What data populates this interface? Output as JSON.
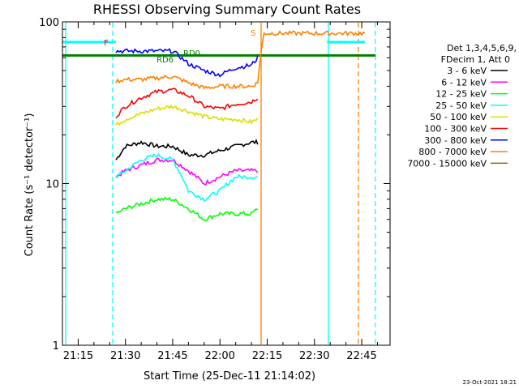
{
  "chart_data": {
    "type": "line",
    "title": "RHESSI Observing Summary Count Rates",
    "xlabel": "Start Time (25-Dec-11 21:14:02)",
    "ylabel": "Count Rate (s⁻¹ detector⁻¹)",
    "yscale": "log",
    "ylim": [
      1,
      100
    ],
    "xlim": [
      "21:10",
      "22:54"
    ],
    "y_ticks": [
      "1",
      "10",
      "100"
    ],
    "x_ticks": [
      "21:15",
      "21:30",
      "21:45",
      "22:00",
      "22:15",
      "22:30",
      "22:45"
    ],
    "grid": false,
    "legend_position": "right",
    "legend_header": [
      "Det 1,3,4,5,6,9,",
      "FDecim 1, Att 0"
    ],
    "series": [
      {
        "name": "3 - 6 keV",
        "color": "#000000",
        "x": [
          "21:27",
          "21:30",
          "21:35",
          "21:40",
          "21:45",
          "21:50",
          "21:55",
          "22:00",
          "22:05",
          "22:10",
          "22:12"
        ],
        "values": [
          14,
          17,
          18,
          17,
          17,
          15,
          15,
          16,
          17,
          18,
          18
        ]
      },
      {
        "name": "6 - 12 keV",
        "color": "#ff00ff",
        "x": [
          "21:27",
          "21:30",
          "21:35",
          "21:40",
          "21:45",
          "21:50",
          "21:55",
          "22:00",
          "22:05",
          "22:10",
          "22:12"
        ],
        "values": [
          11,
          12,
          13,
          14,
          14,
          12,
          10,
          11,
          12,
          12,
          12
        ]
      },
      {
        "name": "12 - 25 keV",
        "color": "#00ff00",
        "x": [
          "21:27",
          "21:30",
          "21:35",
          "21:40",
          "21:45",
          "21:50",
          "21:55",
          "22:00",
          "22:05",
          "22:10",
          "22:12"
        ],
        "values": [
          6.5,
          7,
          7.5,
          8,
          8,
          7,
          6,
          6.5,
          6.5,
          6.5,
          7
        ]
      },
      {
        "name": "25 - 50 keV",
        "color": "#00ffff",
        "x": [
          "21:27",
          "21:30",
          "21:35",
          "21:40",
          "21:45",
          "21:50",
          "21:55",
          "22:00",
          "22:05",
          "22:10",
          "22:12"
        ],
        "values": [
          11,
          12,
          14,
          15,
          14,
          9,
          8,
          9,
          11,
          11,
          11
        ]
      },
      {
        "name": "50 - 100 keV",
        "color": "#dddd00",
        "x": [
          "21:27",
          "21:30",
          "21:35",
          "21:40",
          "21:45",
          "21:50",
          "21:55",
          "22:00",
          "22:05",
          "22:10",
          "22:12"
        ],
        "values": [
          23,
          25,
          27,
          29,
          30,
          28,
          26,
          25,
          25,
          24,
          25
        ]
      },
      {
        "name": "100 - 300 keV",
        "color": "#ff0000",
        "x": [
          "21:27",
          "21:30",
          "21:35",
          "21:40",
          "21:45",
          "21:50",
          "21:55",
          "22:00",
          "22:05",
          "22:10",
          "22:12"
        ],
        "values": [
          26,
          30,
          34,
          37,
          38,
          35,
          30,
          29,
          31,
          32,
          34
        ]
      },
      {
        "name": "300 - 800 keV",
        "color": "#0000ff",
        "x": [
          "21:27",
          "21:30",
          "21:35",
          "21:40",
          "21:45",
          "21:50",
          "21:55",
          "22:00",
          "22:05",
          "22:10",
          "22:12"
        ],
        "values": [
          66,
          66,
          66,
          66,
          66,
          55,
          50,
          47,
          52,
          54,
          60
        ]
      },
      {
        "name": "800 - 7000 keV",
        "color": "#ff8000",
        "x": [
          "21:27",
          "21:30",
          "21:35",
          "21:40",
          "21:45",
          "21:50",
          "21:55",
          "22:00",
          "22:05",
          "22:10",
          "22:12",
          "22:14",
          "22:20",
          "22:30",
          "22:40",
          "22:46"
        ],
        "values": [
          43,
          44,
          44,
          45,
          46,
          42,
          39,
          40,
          40,
          40,
          42,
          85,
          85,
          85,
          85,
          85
        ]
      },
      {
        "name": "7000 - 15000 keV",
        "color": "#8b6508",
        "x": [],
        "values": []
      }
    ],
    "annotations": [
      {
        "text": "RD0",
        "color": "#008000"
      },
      {
        "text": "RD6",
        "color": "#008000"
      },
      {
        "text": "F",
        "color": "#ff0000"
      },
      {
        "text": "S",
        "color": "#ff8000"
      }
    ],
    "flags": {
      "attenuator_level": 62,
      "saa_level": 75,
      "night_spans": [
        [
          "21:10",
          "21:27"
        ],
        [
          "22:34",
          "22:46"
        ]
      ]
    }
  },
  "footer": {
    "timestamp": "23-Oct-2021 18:21"
  }
}
